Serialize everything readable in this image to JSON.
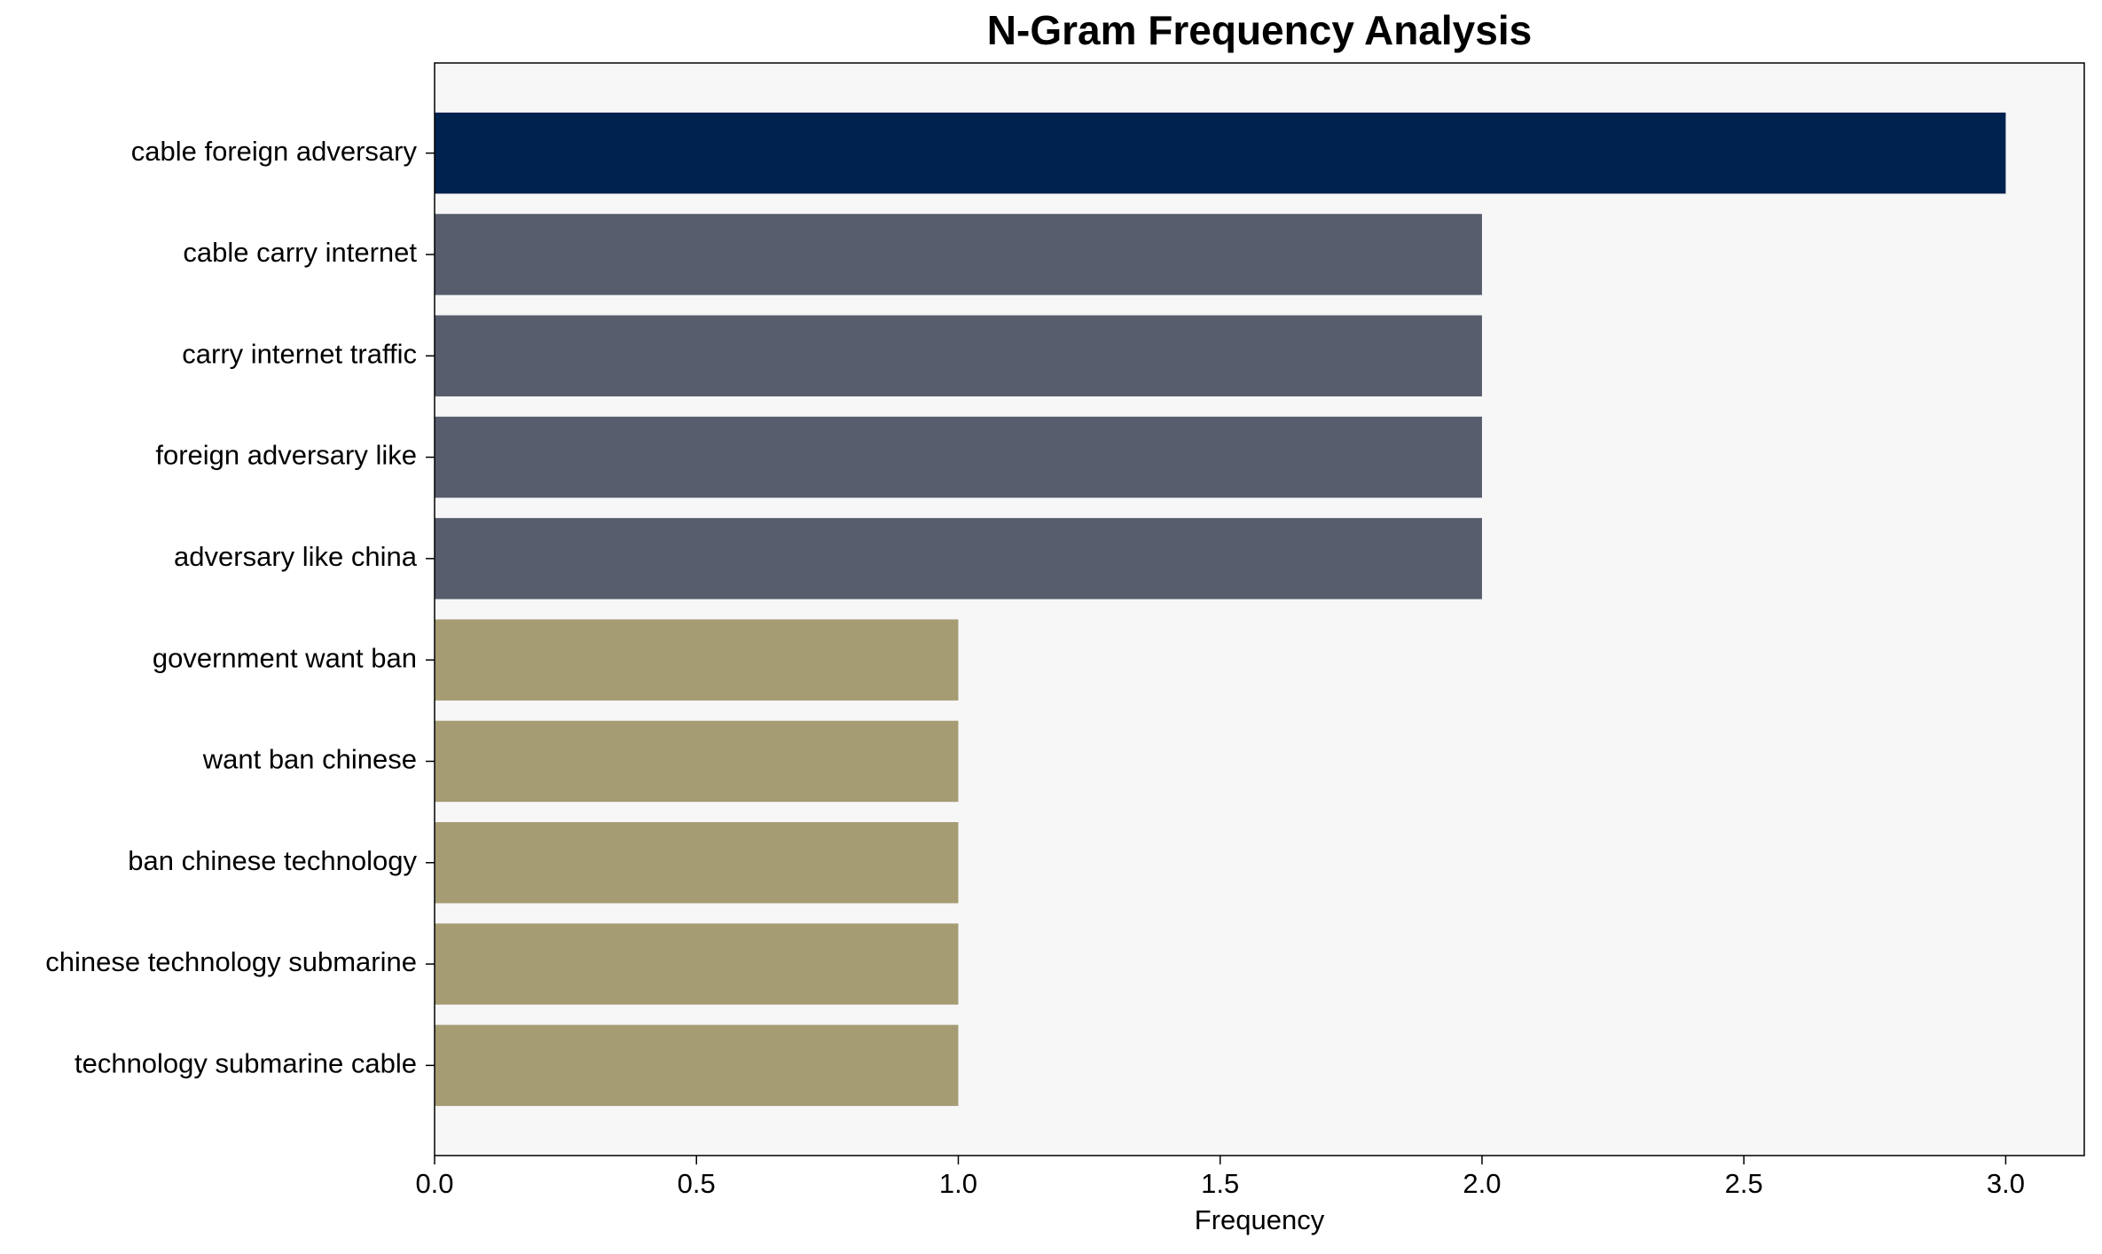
{
  "chart_data": {
    "type": "bar",
    "orientation": "horizontal",
    "title": "N-Gram Frequency Analysis",
    "x_label": "Frequency",
    "categories": [
      "cable foreign adversary",
      "cable carry internet",
      "carry internet traffic",
      "foreign adversary like",
      "adversary like china",
      "government want ban",
      "want ban chinese",
      "ban chinese technology",
      "chinese technology submarine",
      "technology submarine cable"
    ],
    "values": [
      3,
      2,
      2,
      2,
      2,
      1,
      1,
      1,
      1,
      1
    ],
    "colors": [
      "#00224e",
      "#575d6d",
      "#575d6d",
      "#575d6d",
      "#575d6d",
      "#a59c74",
      "#a59c74",
      "#a59c74",
      "#a59c74",
      "#a59c74"
    ],
    "xlim": [
      0,
      3.15
    ],
    "xticks": [
      {
        "value": 0,
        "label": "0.0"
      },
      {
        "value": 0.5,
        "label": "0.5"
      },
      {
        "value": 1,
        "label": "1.0"
      },
      {
        "value": 1.5,
        "label": "1.5"
      },
      {
        "value": 2,
        "label": "2.0"
      },
      {
        "value": 2.5,
        "label": "2.5"
      },
      {
        "value": 3,
        "label": "3.0"
      }
    ],
    "grid": false
  }
}
